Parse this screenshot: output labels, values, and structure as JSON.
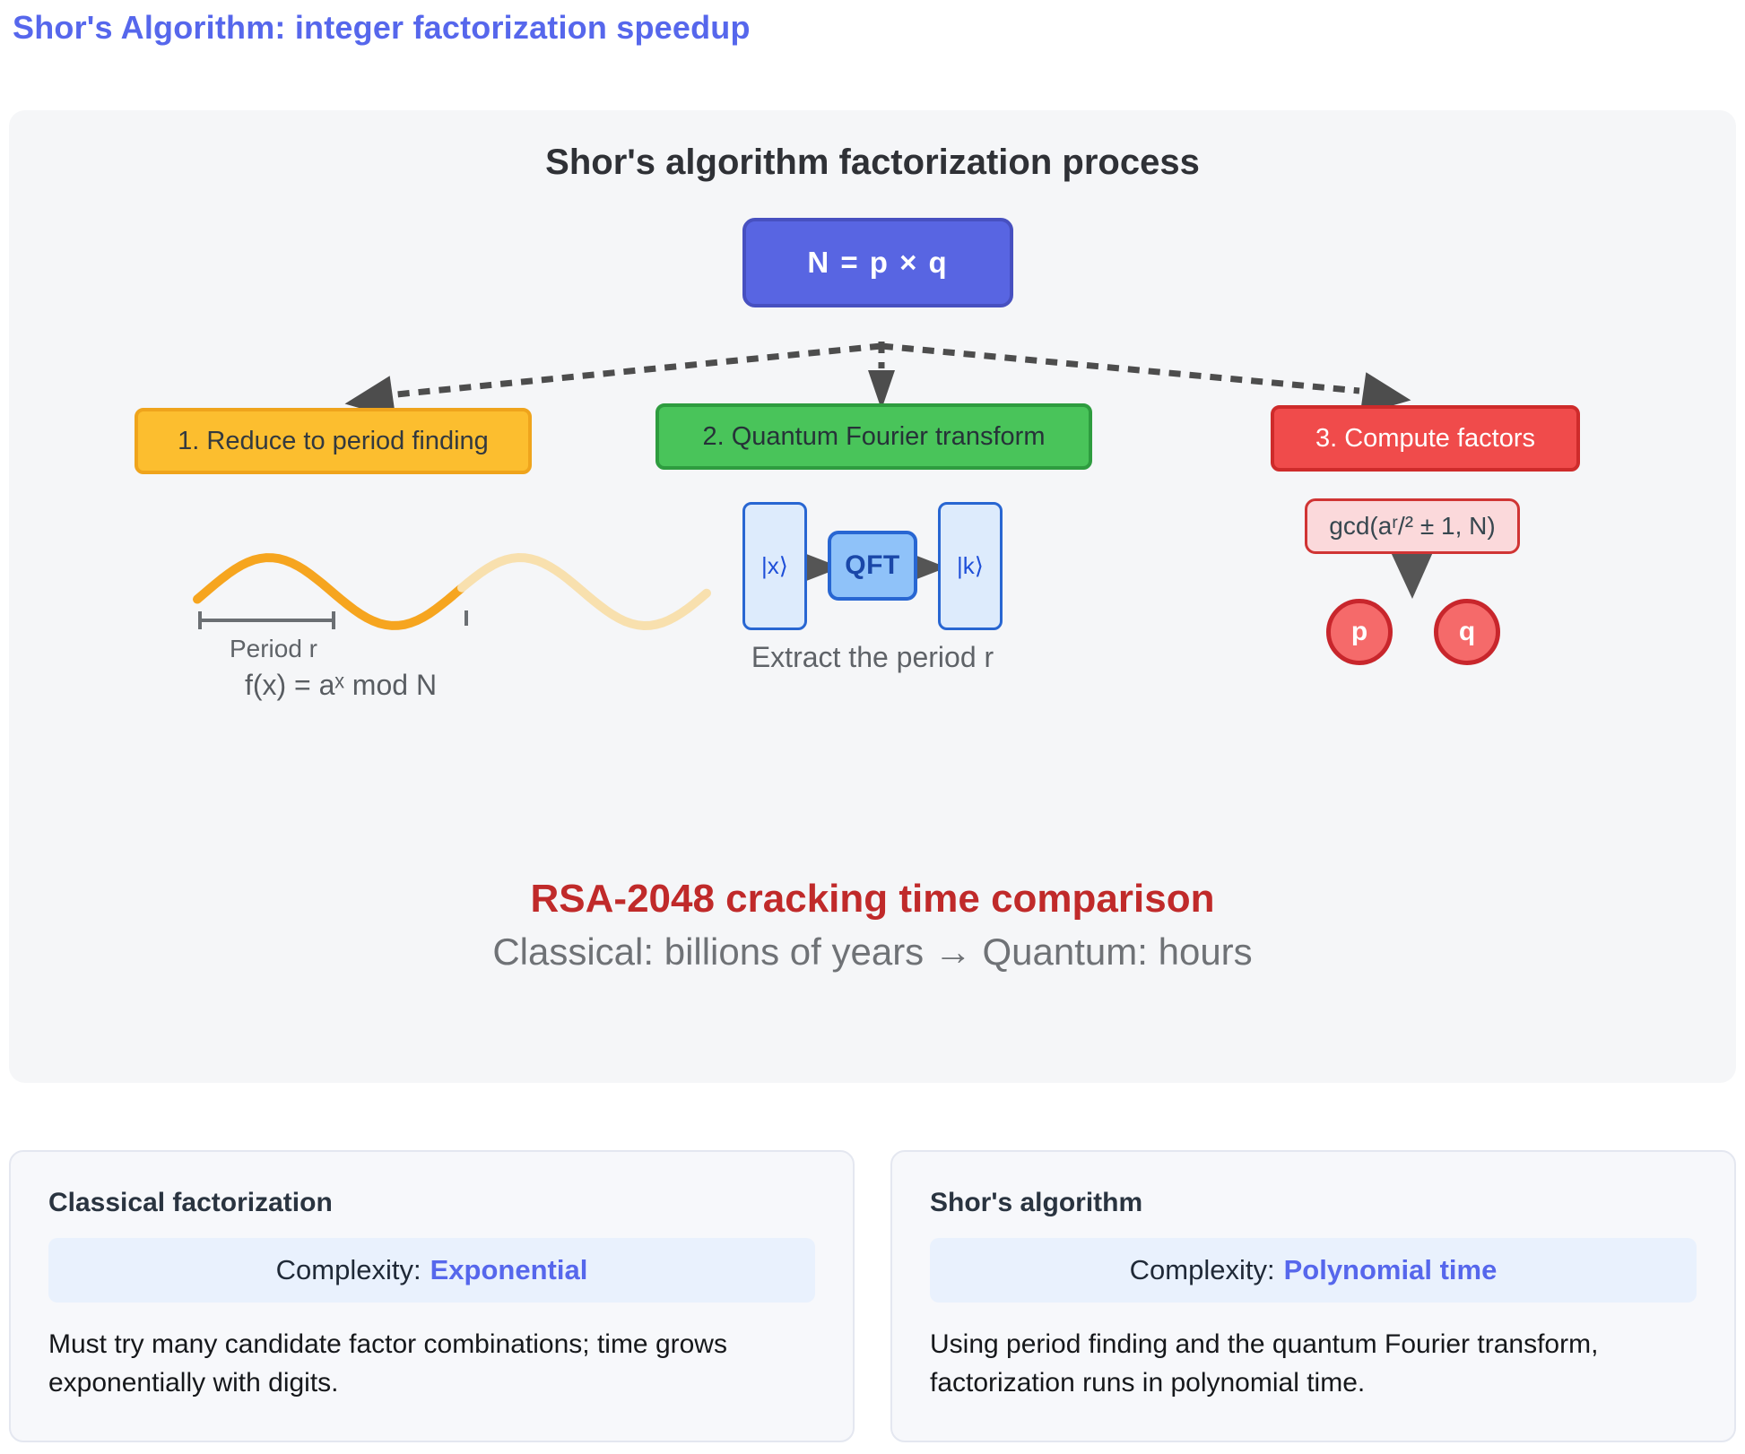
{
  "page": {
    "title": "Shor's Algorithm: integer factorization speedup"
  },
  "diagram": {
    "heading": "Shor's algorithm factorization process",
    "root_label": "N = p × q",
    "steps": [
      {
        "label": "1. Reduce to period finding"
      },
      {
        "label": "2. Quantum Fourier transform"
      },
      {
        "label": "3. Compute factors"
      }
    ],
    "period": {
      "bracket_label": "Period r",
      "formula": "f(x) = aˣ mod N"
    },
    "qft": {
      "input_ket": "|x⟩",
      "gate_label": "QFT",
      "output_ket": "|k⟩",
      "caption": "Extract the period r"
    },
    "factors": {
      "gcd_formula": "gcd(aʳ/² ± 1, N)",
      "p_label": "p",
      "q_label": "q"
    }
  },
  "comparison": {
    "title": "RSA-2048 cracking time comparison",
    "subtitle": "Classical: billions of years → Quantum: hours"
  },
  "cards": [
    {
      "title": "Classical factorization",
      "complexity_label": "Complexity:",
      "complexity_value": "Exponential",
      "description": "Must try many candidate factor combinations; time grows exponentially with digits."
    },
    {
      "title": "Shor's algorithm",
      "complexity_label": "Complexity:",
      "complexity_value": "Polynomial time",
      "description": "Using period finding and the quantum Fourier transform, factorization runs in polynomial time."
    }
  ],
  "colors": {
    "accent_blue": "#5667ec",
    "root_box": "#5865e2",
    "step_yellow": "#fcbe2f",
    "step_green": "#49c45a",
    "step_red": "#f04b4b",
    "gcd_pink": "#fbd9db",
    "factor_circle": "#f56a6a",
    "qft_light_blue": "#ddebfc",
    "qft_gate_blue": "#8fc2f9",
    "wave_orange": "#f6a51f",
    "wave_faded": "#f8e0ae",
    "rsa_red": "#c02a2a",
    "arrow_gray": "#4d4d4d",
    "panel_bg": "#f5f6f8"
  }
}
